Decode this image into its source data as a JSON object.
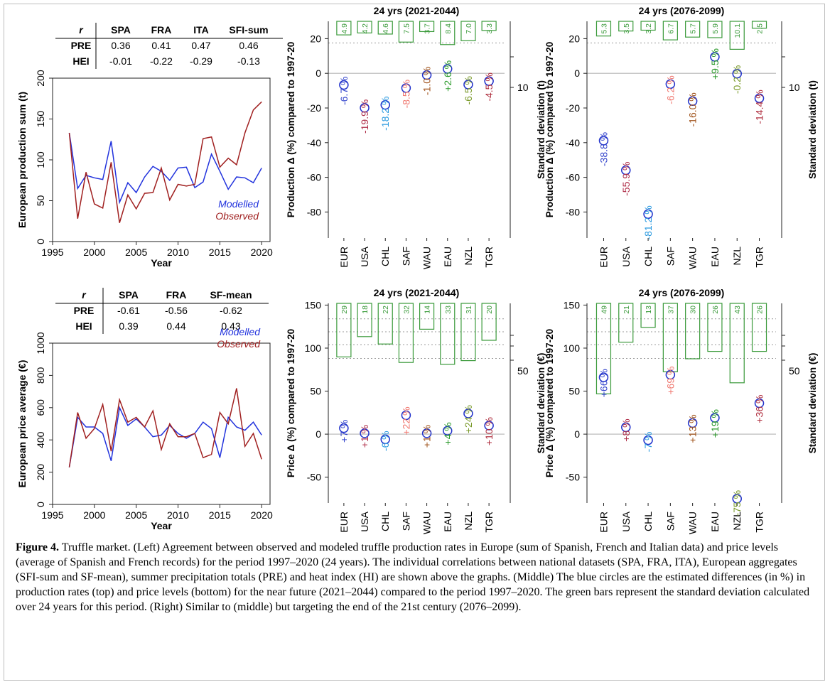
{
  "tables": {
    "production": {
      "corner": "r",
      "headers": [
        "SPA",
        "FRA",
        "ITA",
        "SFI-sum"
      ],
      "rows": [
        {
          "label": "PRE",
          "values": [
            "0.36",
            "0.41",
            "0.47",
            "0.46"
          ]
        },
        {
          "label": "HEI",
          "values": [
            "-0.01",
            "-0.22",
            "-0.29",
            "-0.13"
          ]
        }
      ]
    },
    "price": {
      "corner": "r",
      "headers": [
        "SPA",
        "FRA",
        "SF-mean"
      ],
      "rows": [
        {
          "label": "PRE",
          "values": [
            "-0.61",
            "-0.56",
            "-0.62"
          ]
        },
        {
          "label": "HEI",
          "values": [
            "0.39",
            "0.44",
            "0.43"
          ]
        }
      ]
    }
  },
  "chart_data": [
    {
      "id": "prod-ts",
      "type": "line",
      "xlabel": "Year",
      "ylabel": "European production sum (t)",
      "xlim": [
        1995,
        2021
      ],
      "ylim": [
        0,
        200
      ],
      "xticks": [
        1995,
        2000,
        2005,
        2010,
        2015,
        2020
      ],
      "yticks": [
        0,
        50,
        100,
        150,
        200
      ],
      "legend_position": "bottom-right",
      "x": [
        1997,
        1998,
        1999,
        2000,
        2001,
        2002,
        2003,
        2004,
        2005,
        2006,
        2007,
        2008,
        2009,
        2010,
        2011,
        2012,
        2013,
        2014,
        2015,
        2016,
        2017,
        2018,
        2019,
        2020
      ],
      "series": [
        {
          "name": "Modelled",
          "color": "#2233dd",
          "values": [
            133,
            65,
            81,
            78,
            76,
            123,
            48,
            72,
            60,
            79,
            92,
            86,
            75,
            90,
            91,
            66,
            73,
            107,
            86,
            64,
            79,
            78,
            72,
            90
          ]
        },
        {
          "name": "Observed",
          "color": "#a02020",
          "values": [
            133,
            28,
            85,
            46,
            41,
            97,
            23,
            57,
            40,
            59,
            60,
            90,
            51,
            70,
            68,
            70,
            126,
            128,
            91,
            102,
            94,
            133,
            161,
            171
          ]
        }
      ]
    },
    {
      "id": "price-ts",
      "type": "line",
      "xlabel": "Year",
      "ylabel": "European price average (€)",
      "xlim": [
        1995,
        2021
      ],
      "ylim": [
        0,
        1000
      ],
      "xticks": [
        1995,
        2000,
        2005,
        2010,
        2015,
        2020
      ],
      "yticks": [
        0,
        200,
        400,
        600,
        800,
        1000
      ],
      "legend_position": "top-right",
      "x": [
        1997,
        1998,
        1999,
        2000,
        2001,
        2002,
        2003,
        2004,
        2005,
        2006,
        2007,
        2008,
        2009,
        2010,
        2011,
        2012,
        2013,
        2014,
        2015,
        2016,
        2017,
        2018,
        2019,
        2020
      ],
      "series": [
        {
          "name": "Modelled",
          "color": "#2233dd",
          "values": [
            230,
            540,
            480,
            480,
            440,
            270,
            600,
            490,
            530,
            480,
            420,
            430,
            490,
            440,
            410,
            440,
            510,
            470,
            290,
            540,
            480,
            460,
            510,
            430
          ]
        },
        {
          "name": "Observed",
          "color": "#a02020",
          "values": [
            230,
            570,
            410,
            470,
            620,
            330,
            650,
            510,
            540,
            480,
            580,
            340,
            500,
            420,
            420,
            440,
            290,
            310,
            570,
            500,
            720,
            360,
            440,
            280
          ]
        }
      ]
    },
    {
      "id": "prod-near",
      "type": "scatter",
      "title": "24 yrs (2021-2044)",
      "ylabel": "Production Δ (%) compared to 1997-20",
      "y2label": "Standard deviation (t)",
      "ylim": [
        -95,
        30
      ],
      "yticks": [
        -80,
        -60,
        -40,
        -20,
        0,
        20
      ],
      "y2ticks": [
        10
      ],
      "categories": [
        "EUR",
        "USA",
        "CHL",
        "SAF",
        "WAU",
        "EAU",
        "NZL",
        "TGR"
      ],
      "values": [
        -6.7,
        -19.9,
        -18.2,
        -8.5,
        -1.0,
        2.6,
        -6.5,
        -4.5
      ],
      "labels": [
        "-6.7 %",
        "-19.9 %",
        "-18.2 %",
        "-8.5 %",
        "-1.0 %",
        "+2.6 %",
        "-6.5 %",
        "-4.5 %"
      ],
      "label_colors": [
        "#3344cc",
        "#b0304a",
        "#2d9be0",
        "#f07a72",
        "#a0521a",
        "#2a9a2a",
        "#7a9a2a",
        "#b03040"
      ],
      "sd": [
        4.9,
        4.2,
        4.6,
        7.5,
        3.7,
        8.4,
        7.0,
        3.3
      ],
      "sd_labels": [
        "4.9",
        "4.2",
        "4.6",
        "7.5",
        "3.7",
        "8.4",
        "7.0",
        "3.3"
      ],
      "ref_lines": [
        17.5
      ],
      "grid": false
    },
    {
      "id": "prod-far",
      "type": "scatter",
      "title": "24 yrs (2076-2099)",
      "ylabel": "Production Δ (%) compared to 1997-20",
      "y2label": "Standard deviation (t)",
      "ylim": [
        -95,
        30
      ],
      "yticks": [
        -80,
        -60,
        -40,
        -20,
        0,
        20
      ],
      "y2ticks": [
        10
      ],
      "categories": [
        "EUR",
        "USA",
        "CHL",
        "SAF",
        "WAU",
        "EAU",
        "NZL",
        "TGR"
      ],
      "values": [
        -38.8,
        -55.9,
        -81.2,
        -6.2,
        -16.0,
        9.5,
        -0.2,
        -14.4
      ],
      "labels": [
        "-38.8 %",
        "-55.9 %",
        "-81.2 %",
        "-6.2 %",
        "-16.0 %",
        "+9.5 %",
        "-0.2 %",
        "-14.4 %"
      ],
      "label_colors": [
        "#3344cc",
        "#b0304a",
        "#2d9be0",
        "#f07a72",
        "#a0521a",
        "#2a9a2a",
        "#7a9a2a",
        "#b03040"
      ],
      "sd": [
        5.3,
        3.5,
        3.2,
        6.7,
        5.7,
        5.9,
        10.1,
        2.5
      ],
      "sd_labels": [
        "5.3",
        "3.5",
        "3.2",
        "6.7",
        "5.7",
        "5.9",
        "10.1",
        "2.5"
      ],
      "ref_lines": [
        17.5
      ],
      "grid": false
    },
    {
      "id": "price-near",
      "type": "scatter",
      "title": "24 yrs (2021-2044)",
      "ylabel": "Price Δ (%) compared to 1997-20",
      "y2label": "Standard deviation (€)",
      "ylim": [
        -80,
        152
      ],
      "yticks": [
        -50,
        0,
        50,
        100,
        150
      ],
      "y2ticks": [
        50
      ],
      "categories": [
        "EUR",
        "USA",
        "CHL",
        "SAF",
        "WAU",
        "EAU",
        "NZL",
        "TGR"
      ],
      "values": [
        7,
        1,
        -6,
        22,
        1,
        4,
        24,
        10
      ],
      "labels": [
        "+7 %",
        "+1 %",
        "-6 %",
        "+22 %",
        "+1 %",
        "+4 %",
        "+24 %",
        "+10 %"
      ],
      "label_colors": [
        "#3344cc",
        "#b0304a",
        "#2d9be0",
        "#f07a72",
        "#a0521a",
        "#2a9a2a",
        "#7a9a2a",
        "#b03040"
      ],
      "sd": [
        29,
        18,
        22,
        32,
        14,
        33,
        31,
        20
      ],
      "sd_labels": [
        "29",
        "18",
        "22",
        "32",
        "14",
        "33",
        "31",
        "20"
      ],
      "ref_lines": [
        88,
        104,
        119,
        134
      ],
      "grid": false
    },
    {
      "id": "price-far",
      "type": "scatter",
      "title": "24 yrs (2076-2099)",
      "ylabel": "Price Δ (%) compared to 1997-20",
      "y2label": "Standard deviation (€)",
      "ylim": [
        -80,
        152
      ],
      "yticks": [
        -50,
        0,
        50,
        100,
        150
      ],
      "y2ticks": [
        50
      ],
      "categories": [
        "EUR",
        "USA",
        "CHL",
        "SAF",
        "WAU",
        "EAU",
        "NZL",
        "TGR"
      ],
      "values": [
        66,
        8,
        -7,
        69,
        13,
        19,
        -75,
        36
      ],
      "labels": [
        "+66 %",
        "+8 %",
        "-7 %",
        "+69 %",
        "+13 %",
        "+19 %",
        "-75 %",
        "+36 %"
      ],
      "label_colors": [
        "#3344cc",
        "#b0304a",
        "#2d9be0",
        "#f07a72",
        "#a0521a",
        "#2a9a2a",
        "#7a9a2a",
        "#b03040"
      ],
      "sd": [
        49,
        21,
        13,
        37,
        30,
        26,
        43,
        26
      ],
      "sd_labels": [
        "49",
        "21",
        "13",
        "37",
        "30",
        "26",
        "43",
        "26"
      ],
      "ref_lines": [
        88,
        104,
        119,
        134
      ],
      "grid": false
    }
  ],
  "caption": {
    "label": "Figure 4.",
    "text": " Truffle market. (Left) Agreement between observed and modeled truffle production rates in Europe (sum of Spanish, French and Italian data) and price levels (average of Spanish and French records) for the period 1997–2020 (24 years). The individual correlations between national datasets (SPA, FRA, ITA), European aggregates (SFI-sum and SF-mean), summer precipitation totals (PRE) and heat index (HI) are shown above the graphs. (Middle) The blue circles are the estimated differences (in %) in production rates (top) and price levels (bottom) for the near future (2021–2044) compared to the period 1997–2020. The green bars represent the standard deviation calculated over 24 years for this period. (Right) Similar to (middle) but targeting the end of the 21st century (2076–2099)."
  }
}
